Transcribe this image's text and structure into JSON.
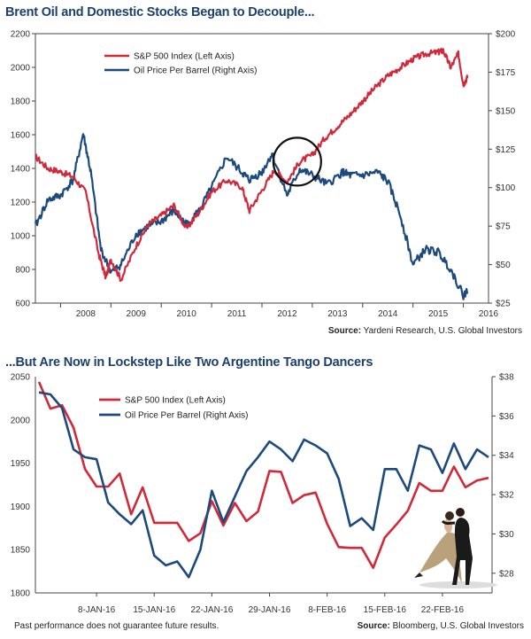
{
  "charts": [
    {
      "title": "Brent Oil and Domestic Stocks Began to Decouple...",
      "source_label": "Source:",
      "source_text": " Yardeni Research, U.S. Global Investors",
      "legend": [
        "S&P 500 Index (Left Axis)",
        "Oil Price Per Barrel (Right Axis)"
      ]
    },
    {
      "title": "...But Are Now in Lockstep Like Two Argentine Tango Dancers",
      "source_label": "Source:",
      "source_text": " Bloomberg, U.S. Global Investors",
      "legend": [
        "S&P 500 Index (Left Axis)",
        "Oil Price Per Barrel (Right Axis)"
      ]
    }
  ],
  "disclaimer": "Past performance does not guarantee future results.",
  "colors": {
    "sp500": "#d2293a",
    "oil": "#1c4a7f",
    "title": "#1b3f6e"
  },
  "chart_data": [
    {
      "type": "line",
      "title": "Brent Oil and Domestic Stocks Began to Decouple...",
      "x_ticks": [
        "2008",
        "2009",
        "2010",
        "2011",
        "2012",
        "2013",
        "2014",
        "2015",
        "2016"
      ],
      "x_range": [
        2007.5,
        2016.5
      ],
      "y_left_ticks": [
        "600",
        "800",
        "1000",
        "1200",
        "1400",
        "1600",
        "1800",
        "2000",
        "2200"
      ],
      "y_left_range": [
        600,
        2200
      ],
      "y_right_ticks": [
        "$25",
        "$50",
        "$75",
        "$100",
        "$125",
        "$150",
        "$175",
        "$200"
      ],
      "y_right_range": [
        25,
        200
      ],
      "grid": false,
      "legend_position": "top-left",
      "annotation": "circle around mid-2012 crossover",
      "series": [
        {
          "name": "S&P 500 Index (Left Axis)",
          "axis": "left",
          "x": [
            2007.5,
            2007.75,
            2008.0,
            2008.25,
            2008.5,
            2008.75,
            2008.9,
            2009.0,
            2009.2,
            2009.5,
            2009.75,
            2010.0,
            2010.25,
            2010.5,
            2010.75,
            2011.0,
            2011.3,
            2011.6,
            2011.75,
            2012.0,
            2012.25,
            2012.5,
            2012.75,
            2013.0,
            2013.25,
            2013.5,
            2013.75,
            2014.0,
            2014.25,
            2014.5,
            2014.75,
            2015.0,
            2015.25,
            2015.5,
            2015.6,
            2015.75,
            2015.9,
            2016.0,
            2016.08
          ],
          "values": [
            1470,
            1400,
            1380,
            1350,
            1260,
            900,
            750,
            860,
            740,
            940,
            1070,
            1120,
            1180,
            1040,
            1140,
            1260,
            1330,
            1290,
            1150,
            1270,
            1390,
            1320,
            1440,
            1480,
            1580,
            1650,
            1720,
            1800,
            1880,
            1950,
            2000,
            2050,
            2080,
            2090,
            2100,
            2000,
            2080,
            1900,
            1940
          ]
        },
        {
          "name": "Oil Price Per Barrel (Right Axis)",
          "axis": "right",
          "x": [
            2007.5,
            2007.75,
            2008.0,
            2008.25,
            2008.45,
            2008.6,
            2008.8,
            2009.0,
            2009.2,
            2009.5,
            2009.75,
            2010.0,
            2010.25,
            2010.5,
            2010.75,
            2011.0,
            2011.3,
            2011.6,
            2011.75,
            2012.0,
            2012.2,
            2012.5,
            2012.75,
            2013.0,
            2013.3,
            2013.6,
            2013.75,
            2014.0,
            2014.3,
            2014.5,
            2014.75,
            2015.0,
            2015.25,
            2015.5,
            2015.75,
            2016.0,
            2016.08
          ],
          "values": [
            75,
            92,
            95,
            105,
            135,
            110,
            60,
            45,
            50,
            70,
            75,
            78,
            85,
            76,
            85,
            100,
            120,
            110,
            105,
            110,
            122,
            95,
            112,
            108,
            102,
            110,
            108,
            108,
            110,
            104,
            82,
            50,
            60,
            58,
            47,
            30,
            33
          ]
        }
      ]
    },
    {
      "type": "line",
      "title": "...But Are Now in Lockstep Like Two Argentine Tango Dancers",
      "x_ticks": [
        "8-JAN-16",
        "15-JAN-16",
        "22-JAN-16",
        "29-JAN-16",
        "8-FEB-16",
        "15-FEB-16",
        "22-FEB-16"
      ],
      "y_left_ticks": [
        "1800",
        "1850",
        "1900",
        "1950",
        "2000",
        "2050"
      ],
      "y_left_range": [
        1800,
        2050
      ],
      "y_right_ticks": [
        "$28",
        "$30",
        "$32",
        "$34",
        "$36",
        "$38"
      ],
      "y_right_range": [
        27,
        38
      ],
      "grid": false,
      "legend_position": "top-left",
      "series": [
        {
          "name": "S&P 500 Index (Left Axis)",
          "axis": "left",
          "values": [
            2044,
            2013,
            2017,
            1991,
            1943,
            1923,
            1923,
            1938,
            1891,
            1922,
            1881,
            1881,
            1881,
            1860,
            1869,
            1906,
            1878,
            1904,
            1883,
            1894,
            1941,
            1940,
            1904,
            1913,
            1916,
            1880,
            1853,
            1852,
            1852,
            1829,
            1864,
            1879,
            1895,
            1927,
            1918,
            1918,
            1946,
            1922,
            1930,
            1933
          ]
        },
        {
          "name": "Oil Price Per Barrel (Right Axis)",
          "axis": "right",
          "values": [
            37.2,
            37.1,
            36.4,
            34.3,
            33.9,
            33.8,
            31.6,
            31.0,
            30.5,
            31.2,
            28.9,
            28.4,
            28.6,
            27.8,
            29.2,
            32.2,
            30.6,
            31.9,
            33.2,
            33.9,
            34.7,
            34.3,
            33.7,
            34.8,
            34.5,
            34.1,
            32.8,
            30.4,
            30.8,
            30.2,
            33.3,
            33.3,
            32.2,
            34.5,
            34.3,
            33.1,
            34.6,
            33.3,
            34.3,
            33.9
          ]
        }
      ]
    }
  ]
}
